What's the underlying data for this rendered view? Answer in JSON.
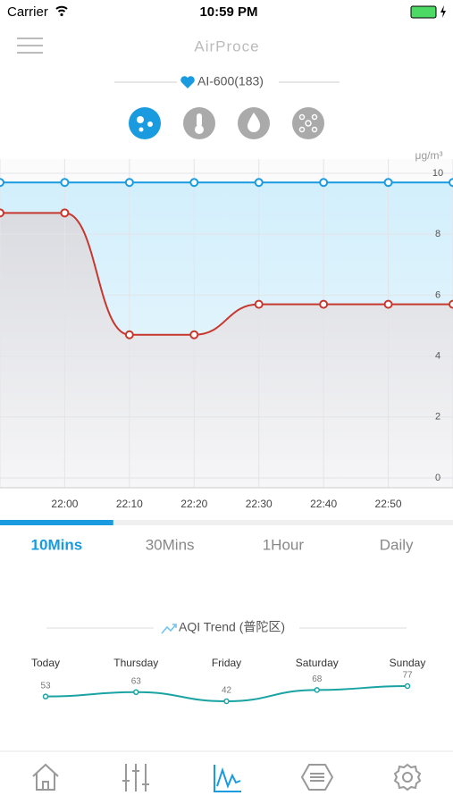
{
  "status_bar": {
    "carrier": "Carrier",
    "time": "10:59 PM"
  },
  "header": {
    "title": "AirProce",
    "device": "AI-600(183)"
  },
  "tabs": {
    "items": [
      "10Mins",
      "30Mins",
      "1Hour",
      "Daily"
    ],
    "active": 0
  },
  "chart_data": [
    {
      "type": "line",
      "y_label": "μg/m³",
      "categories": [
        null,
        "22:00",
        "22:10",
        "22:20",
        "22:30",
        "22:40",
        "22:50",
        null
      ],
      "series": [
        {
          "color": "#1a9be0",
          "values": [
            9.7,
            9.7,
            9.7,
            9.7,
            9.7,
            9.7,
            9.7,
            9.7
          ]
        },
        {
          "color": "#c8372d",
          "values": [
            8.7,
            8.7,
            4.7,
            4.7,
            5.7,
            5.7,
            5.7,
            5.7
          ]
        }
      ],
      "ylim": [
        0,
        10
      ],
      "yticks": [
        0,
        2,
        4,
        6,
        8,
        10
      ],
      "grid": true
    },
    {
      "type": "line",
      "title": "AQI Trend (普陀区)",
      "categories": [
        "Today",
        "Thursday",
        "Friday",
        "Saturday",
        "Sunday"
      ],
      "values": [
        53,
        63,
        42,
        68,
        77
      ],
      "color": "#1aa3a3"
    }
  ]
}
